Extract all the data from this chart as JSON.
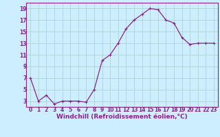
{
  "x": [
    0,
    1,
    2,
    3,
    4,
    5,
    6,
    7,
    8,
    9,
    10,
    11,
    12,
    13,
    14,
    15,
    16,
    17,
    18,
    19,
    20,
    21,
    22,
    23
  ],
  "y": [
    7,
    3,
    4,
    2.5,
    3,
    3,
    3,
    2.8,
    5,
    10,
    11,
    13,
    15.5,
    17,
    18,
    19,
    18.8,
    17,
    16.5,
    14,
    12.8,
    13,
    13,
    13
  ],
  "line_color": "#882288",
  "marker": "+",
  "marker_size": 3,
  "marker_lw": 0.8,
  "line_width": 0.9,
  "bg_color": "#cceeff",
  "grid_color": "#aacccc",
  "xlabel": "Windchill (Refroidissement éolien,°C)",
  "xlabel_fontsize": 6.5,
  "xlabel_fontweight": "bold",
  "ylim": [
    2,
    20
  ],
  "xlim": [
    -0.5,
    23.5
  ],
  "yticks": [
    3,
    5,
    7,
    9,
    11,
    13,
    15,
    17,
    19
  ],
  "xticks": [
    0,
    1,
    2,
    3,
    4,
    5,
    6,
    7,
    8,
    9,
    10,
    11,
    12,
    13,
    14,
    15,
    16,
    17,
    18,
    19,
    20,
    21,
    22,
    23
  ],
  "tick_fontsize": 5.5,
  "spine_color": "#882288",
  "label_color": "#882288",
  "border_color": "#882288"
}
